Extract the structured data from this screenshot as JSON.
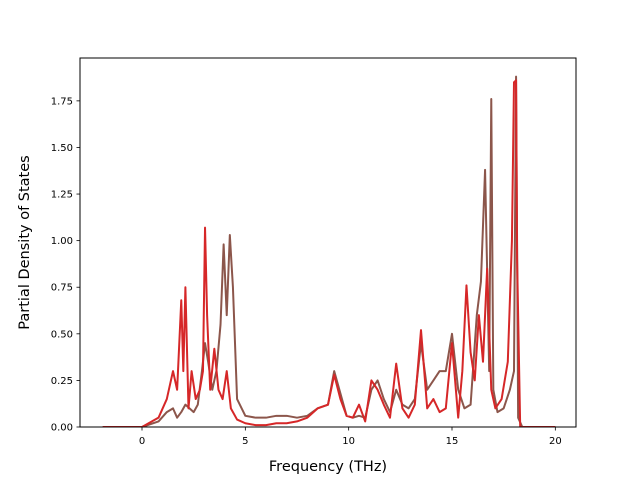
{
  "chart_data": {
    "type": "line",
    "title": "",
    "xlabel": "Frequency (THz)",
    "ylabel": "Partial Density of States",
    "xlim": [
      -3.0,
      21.0
    ],
    "ylim": [
      0.0,
      1.98
    ],
    "xticks": [
      0,
      5,
      10,
      15,
      20
    ],
    "xtick_labels": [
      "0",
      "5",
      "10",
      "15",
      "20"
    ],
    "yticks": [
      0.0,
      0.25,
      0.5,
      0.75,
      1.0,
      1.25,
      1.5,
      1.75
    ],
    "ytick_labels": [
      "0.00",
      "0.25",
      "0.50",
      "0.75",
      "1.00",
      "1.25",
      "1.50",
      "1.75"
    ],
    "grid": false,
    "legend": "none",
    "series": [
      {
        "color": "#8c564b",
        "x": [
          -1.9,
          0.0,
          0.8,
          1.2,
          1.5,
          1.7,
          1.9,
          2.1,
          2.3,
          2.5,
          2.7,
          2.9,
          3.05,
          3.2,
          3.4,
          3.6,
          3.8,
          3.95,
          4.1,
          4.25,
          4.4,
          4.6,
          5.0,
          5.5,
          6.0,
          6.5,
          7.0,
          7.5,
          8.0,
          8.5,
          9.0,
          9.3,
          9.6,
          9.9,
          10.2,
          10.5,
          10.8,
          11.1,
          11.4,
          11.7,
          12.0,
          12.3,
          12.6,
          12.9,
          13.2,
          13.5,
          13.8,
          14.1,
          14.4,
          14.7,
          15.0,
          15.3,
          15.6,
          15.9,
          16.2,
          16.4,
          16.6,
          16.8,
          16.9,
          17.0,
          17.2,
          17.5,
          17.8,
          18.0,
          18.1,
          18.2,
          18.4,
          19.0,
          20.0
        ],
        "y": [
          0.0,
          0.0,
          0.03,
          0.08,
          0.1,
          0.05,
          0.08,
          0.12,
          0.1,
          0.08,
          0.12,
          0.3,
          0.45,
          0.35,
          0.2,
          0.3,
          0.55,
          0.98,
          0.6,
          1.03,
          0.75,
          0.15,
          0.06,
          0.05,
          0.05,
          0.06,
          0.06,
          0.05,
          0.06,
          0.1,
          0.12,
          0.3,
          0.18,
          0.06,
          0.05,
          0.06,
          0.05,
          0.2,
          0.25,
          0.15,
          0.08,
          0.2,
          0.12,
          0.1,
          0.15,
          0.45,
          0.2,
          0.25,
          0.3,
          0.3,
          0.5,
          0.2,
          0.1,
          0.12,
          0.6,
          0.78,
          1.38,
          0.3,
          1.76,
          0.2,
          0.08,
          0.1,
          0.2,
          0.3,
          1.88,
          0.05,
          0.0,
          0.0,
          0.0
        ]
      },
      {
        "color": "#d62728",
        "x": [
          -1.9,
          0.0,
          0.8,
          1.2,
          1.5,
          1.7,
          1.9,
          2.0,
          2.1,
          2.25,
          2.4,
          2.6,
          2.8,
          2.95,
          3.05,
          3.15,
          3.3,
          3.5,
          3.7,
          3.9,
          4.1,
          4.3,
          4.6,
          5.0,
          5.5,
          6.0,
          6.5,
          7.0,
          7.5,
          8.0,
          8.5,
          9.0,
          9.3,
          9.6,
          9.9,
          10.2,
          10.5,
          10.8,
          11.1,
          11.4,
          11.7,
          12.0,
          12.3,
          12.6,
          12.9,
          13.2,
          13.5,
          13.8,
          14.1,
          14.4,
          14.7,
          15.0,
          15.3,
          15.5,
          15.7,
          15.9,
          16.1,
          16.3,
          16.5,
          16.7,
          16.9,
          17.1,
          17.4,
          17.7,
          17.9,
          18.0,
          18.1,
          18.15,
          18.3,
          19.0,
          20.0
        ],
        "y": [
          0.0,
          0.0,
          0.05,
          0.15,
          0.3,
          0.2,
          0.68,
          0.3,
          0.75,
          0.1,
          0.3,
          0.15,
          0.2,
          0.3,
          1.07,
          0.6,
          0.2,
          0.42,
          0.2,
          0.15,
          0.3,
          0.1,
          0.04,
          0.02,
          0.01,
          0.01,
          0.02,
          0.02,
          0.03,
          0.05,
          0.1,
          0.12,
          0.28,
          0.15,
          0.06,
          0.05,
          0.12,
          0.03,
          0.25,
          0.2,
          0.12,
          0.05,
          0.34,
          0.1,
          0.05,
          0.12,
          0.52,
          0.1,
          0.15,
          0.08,
          0.1,
          0.45,
          0.05,
          0.3,
          0.76,
          0.4,
          0.25,
          0.6,
          0.35,
          0.85,
          0.2,
          0.1,
          0.15,
          0.35,
          1.0,
          1.85,
          1.86,
          0.9,
          0.0,
          0.0,
          0.0
        ]
      }
    ]
  }
}
